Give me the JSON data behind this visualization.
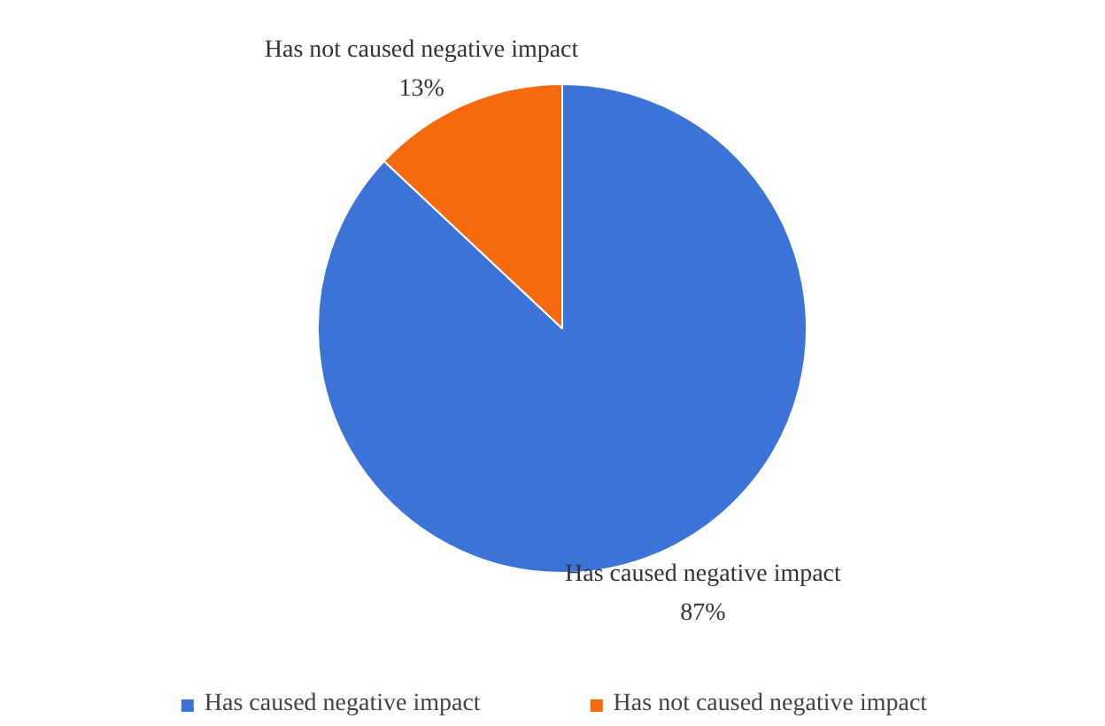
{
  "chart_data": {
    "type": "pie",
    "categories": [
      "Has caused negative impact",
      "Has not caused negative impact"
    ],
    "values": [
      87,
      13
    ],
    "colors": [
      "#3b74d6",
      "#f5690f"
    ],
    "value_labels": [
      "87%",
      "13%"
    ],
    "legend": "bottom"
  }
}
